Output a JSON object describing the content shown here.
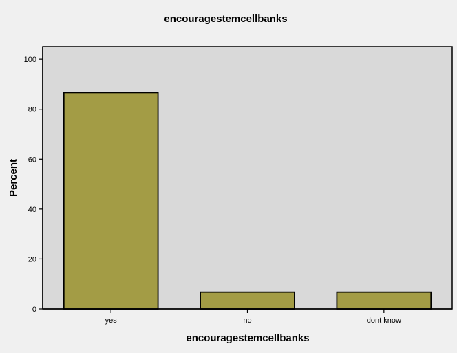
{
  "chart_data": {
    "type": "bar",
    "title": "encouragestemcellbanks",
    "xlabel": "encouragestemcellbanks",
    "ylabel": "Percent",
    "categories": [
      "yes",
      "no",
      "dont know"
    ],
    "values": [
      86.7,
      6.7,
      6.7
    ],
    "ylim": [
      0,
      105
    ],
    "yticks": [
      "0",
      "20",
      "40",
      "60",
      "80",
      "100"
    ],
    "grid": false,
    "colors": {
      "bar_fill": "#a39c45",
      "plot_background": "#d9d9d9",
      "outer_background": "#f0f0f0"
    }
  }
}
